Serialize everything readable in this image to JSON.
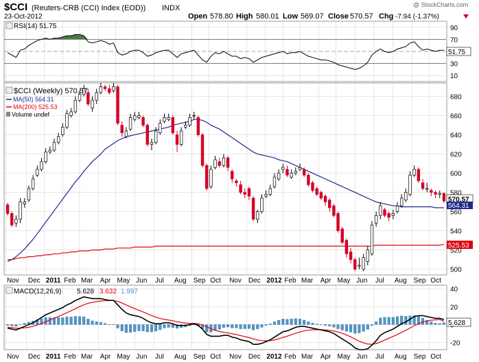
{
  "header": {
    "symbol": "$CCI",
    "title": "(Reuters-CRB (CCI) Index (EOD))",
    "exchange": "INDX",
    "date": "23-Oct-2012",
    "watermark": "@ StockCharts.com",
    "open_label": "Open",
    "open": "578.80",
    "high_label": "High",
    "high": "580.01",
    "low_label": "Low",
    "low": "569.07",
    "close_label": "Close",
    "close": "570.57",
    "chg_label": "Chg",
    "chg": "-7.94 (-1.37%)"
  },
  "rsi": {
    "label": "RSI(14) 51.75",
    "last_tag": "51.75",
    "yticks": [
      "90",
      "70",
      "50",
      "30",
      "10"
    ]
  },
  "price": {
    "legend_main": "$CCI (Weekly) 570.57",
    "legend_ma50": "MA(50) 564.31",
    "legend_ma200": "MA(200) 525.53",
    "legend_vol": "Volume undef",
    "tag_close": "570.57",
    "tag_ma50": "564.31",
    "tag_ma200": "525.53",
    "yticks": [
      "680",
      "660",
      "640",
      "620",
      "600",
      "580",
      "560",
      "540",
      "520",
      "500"
    ]
  },
  "macd": {
    "label_main": "MACD(12,26,9)",
    "val_macd": "5.628",
    "val_signal": "3.632",
    "val_hist": "1.997",
    "last_tag": "5.628",
    "yticks": [
      "40",
      "20",
      "0",
      "-20"
    ]
  },
  "xaxis": [
    "Nov",
    "Dec",
    "2011",
    "Feb",
    "Mar",
    "Apr",
    "May",
    "Jun",
    "Jul",
    "Aug",
    "Sep",
    "Oct",
    "Nov",
    "Dec",
    "2012",
    "Feb",
    "Mar",
    "Apr",
    "May",
    "Jun",
    "Jul",
    "Aug",
    "Sep",
    "Oct"
  ],
  "colors": {
    "up": "#ffffff",
    "down": "#d40027",
    "ma50": "#1c2a8c",
    "ma200": "#e0000f",
    "rsi_fill": "#4e7a4a",
    "hist": "#4f97c9",
    "grid": "#cccccc"
  },
  "chart_data": {
    "type": "candlestick",
    "title": "Reuters-CRB (CCI) Index (EOD)",
    "x": [
      "2010-11-01",
      "2010-11-08",
      "2010-11-15",
      "2010-11-22",
      "2010-11-29",
      "2010-12-06",
      "2010-12-13",
      "2010-12-20",
      "2010-12-27",
      "2011-01-03",
      "2011-01-10",
      "2011-01-17",
      "2011-01-24",
      "2011-01-31",
      "2011-02-07",
      "2011-02-14",
      "2011-02-21",
      "2011-02-28",
      "2011-03-07",
      "2011-03-14",
      "2011-03-21",
      "2011-03-28",
      "2011-04-04",
      "2011-04-11",
      "2011-04-18",
      "2011-04-25",
      "2011-05-02",
      "2011-05-09",
      "2011-05-16",
      "2011-05-23",
      "2011-05-30",
      "2011-06-06",
      "2011-06-13",
      "2011-06-20",
      "2011-06-27",
      "2011-07-04",
      "2011-07-11",
      "2011-07-18",
      "2011-07-25",
      "2011-08-01",
      "2011-08-08",
      "2011-08-15",
      "2011-08-22",
      "2011-08-29",
      "2011-09-05",
      "2011-09-12",
      "2011-09-19",
      "2011-09-26",
      "2011-10-03",
      "2011-10-10",
      "2011-10-17",
      "2011-10-24",
      "2011-10-31",
      "2011-11-07",
      "2011-11-14",
      "2011-11-21",
      "2011-11-28",
      "2011-12-05",
      "2011-12-12",
      "2011-12-19",
      "2011-12-26",
      "2012-01-02",
      "2012-01-09",
      "2012-01-16",
      "2012-01-23",
      "2012-01-30",
      "2012-02-06",
      "2012-02-13",
      "2012-02-20",
      "2012-02-27",
      "2012-03-05",
      "2012-03-12",
      "2012-03-19",
      "2012-03-26",
      "2012-04-02",
      "2012-04-09",
      "2012-04-16",
      "2012-04-23",
      "2012-04-30",
      "2012-05-07",
      "2012-05-14",
      "2012-05-21",
      "2012-05-28",
      "2012-06-04",
      "2012-06-11",
      "2012-06-18",
      "2012-06-25",
      "2012-07-02",
      "2012-07-09",
      "2012-07-16",
      "2012-07-23",
      "2012-07-30",
      "2012-08-06",
      "2012-08-13",
      "2012-08-20",
      "2012-08-27",
      "2012-09-03",
      "2012-09-10",
      "2012-09-17",
      "2012-09-24",
      "2012-10-01",
      "2012-10-08",
      "2012-10-15",
      "2012-10-22"
    ],
    "open": [
      567,
      558,
      548,
      552,
      568,
      572,
      584,
      598,
      604,
      612,
      622,
      624,
      632,
      640,
      648,
      660,
      664,
      676,
      682,
      684,
      668,
      676,
      684,
      690,
      688,
      686,
      690,
      650,
      638,
      646,
      656,
      658,
      658,
      650,
      630,
      632,
      642,
      654,
      656,
      658,
      640,
      630,
      648,
      650,
      660,
      658,
      640,
      608,
      586,
      606,
      612,
      608,
      616,
      602,
      592,
      588,
      580,
      584,
      574,
      552,
      560,
      576,
      578,
      586,
      594,
      604,
      604,
      596,
      600,
      604,
      604,
      598,
      590,
      584,
      580,
      576,
      572,
      566,
      558,
      542,
      530,
      518,
      510,
      504,
      500,
      508,
      516,
      548,
      556,
      562,
      558,
      556,
      560,
      566,
      572,
      578,
      598,
      604,
      590,
      584,
      582,
      580,
      578,
      579
    ],
    "close": [
      558,
      546,
      552,
      570,
      570,
      584,
      594,
      604,
      612,
      622,
      624,
      632,
      638,
      648,
      662,
      664,
      676,
      682,
      688,
      672,
      676,
      684,
      690,
      688,
      684,
      690,
      652,
      642,
      644,
      658,
      660,
      660,
      650,
      630,
      632,
      644,
      652,
      658,
      658,
      642,
      630,
      644,
      650,
      658,
      660,
      640,
      608,
      584,
      604,
      614,
      608,
      616,
      606,
      594,
      590,
      580,
      578,
      576,
      552,
      560,
      574,
      578,
      584,
      596,
      600,
      606,
      598,
      600,
      602,
      606,
      598,
      588,
      582,
      578,
      574,
      570,
      564,
      556,
      540,
      528,
      516,
      510,
      500,
      504,
      512,
      520,
      546,
      556,
      566,
      556,
      554,
      558,
      566,
      574,
      580,
      598,
      604,
      592,
      584,
      584,
      580,
      578,
      579,
      571
    ],
    "high": [
      569,
      560,
      556,
      574,
      574,
      587,
      598,
      608,
      616,
      626,
      628,
      636,
      642,
      652,
      666,
      668,
      680,
      686,
      692,
      688,
      680,
      688,
      694,
      692,
      692,
      694,
      692,
      654,
      648,
      662,
      664,
      664,
      660,
      652,
      636,
      648,
      656,
      662,
      662,
      660,
      644,
      648,
      654,
      662,
      664,
      660,
      642,
      610,
      608,
      618,
      616,
      620,
      618,
      604,
      594,
      592,
      584,
      586,
      576,
      562,
      578,
      582,
      588,
      600,
      604,
      610,
      608,
      604,
      606,
      610,
      606,
      600,
      592,
      586,
      582,
      578,
      574,
      568,
      560,
      544,
      532,
      522,
      512,
      512,
      516,
      524,
      550,
      560,
      570,
      564,
      560,
      562,
      570,
      578,
      584,
      602,
      608,
      606,
      594,
      590,
      584,
      582,
      582,
      580
    ],
    "low": [
      556,
      544,
      544,
      548,
      564,
      570,
      582,
      596,
      602,
      610,
      620,
      622,
      630,
      638,
      646,
      658,
      662,
      674,
      680,
      670,
      664,
      672,
      682,
      686,
      682,
      684,
      650,
      638,
      636,
      644,
      654,
      656,
      648,
      628,
      624,
      630,
      640,
      652,
      654,
      640,
      622,
      628,
      646,
      648,
      656,
      638,
      606,
      582,
      584,
      604,
      606,
      606,
      602,
      590,
      586,
      578,
      574,
      572,
      550,
      548,
      558,
      574,
      576,
      584,
      592,
      600,
      596,
      594,
      598,
      602,
      596,
      586,
      580,
      576,
      572,
      566,
      560,
      554,
      538,
      526,
      512,
      506,
      498,
      500,
      498,
      504,
      514,
      544,
      552,
      554,
      550,
      552,
      558,
      564,
      570,
      576,
      596,
      590,
      582,
      580,
      576,
      574,
      574,
      569
    ],
    "ma50": [
      508,
      510,
      513,
      517,
      521,
      526,
      531,
      537,
      543,
      549,
      555,
      561,
      567,
      573,
      579,
      585,
      591,
      596,
      602,
      607,
      612,
      616,
      620,
      625,
      628,
      631,
      634,
      636,
      638,
      639,
      640,
      641,
      642,
      643,
      644,
      645,
      646,
      647,
      648,
      650,
      651,
      652,
      653,
      654,
      656,
      656,
      655,
      653,
      650,
      648,
      646,
      643,
      640,
      637,
      634,
      631,
      628,
      625,
      622,
      620,
      619,
      618,
      617,
      616,
      614,
      613,
      612,
      610,
      608,
      606,
      604,
      602,
      600,
      598,
      596,
      594,
      592,
      590,
      588,
      586,
      584,
      582,
      580,
      578,
      576,
      574,
      572,
      570,
      569,
      568,
      567,
      566,
      566,
      565,
      565,
      565,
      565,
      565,
      565,
      565,
      565,
      564,
      564,
      564
    ],
    "ma200": [
      510,
      510,
      511,
      512,
      512,
      513,
      513,
      514,
      514,
      515,
      515,
      516,
      516,
      517,
      517,
      518,
      518,
      519,
      519,
      519,
      520,
      520,
      520,
      521,
      521,
      521,
      522,
      522,
      522,
      522,
      523,
      523,
      523,
      523,
      523,
      524,
      524,
      524,
      524,
      524,
      524,
      524,
      524,
      524,
      524,
      524,
      524,
      524,
      524,
      524,
      524,
      524,
      524,
      524,
      524,
      524,
      524,
      524,
      524,
      524,
      524,
      524,
      524,
      524,
      524,
      524,
      524,
      524,
      524,
      524,
      524,
      524,
      524,
      524,
      524,
      524,
      524,
      524,
      524,
      524,
      524,
      524,
      524,
      524,
      524,
      524,
      524,
      525,
      525,
      525,
      525,
      525,
      525,
      525,
      525,
      525,
      525,
      525,
      525,
      525,
      525,
      525,
      525,
      526
    ],
    "rsi": [
      48,
      44,
      40,
      52,
      54,
      60,
      64,
      68,
      70,
      72,
      70,
      72,
      72,
      74,
      76,
      76,
      78,
      78,
      76,
      66,
      64,
      66,
      68,
      66,
      62,
      64,
      48,
      44,
      46,
      50,
      52,
      52,
      48,
      42,
      44,
      48,
      50,
      52,
      52,
      46,
      40,
      46,
      48,
      50,
      52,
      44,
      36,
      32,
      42,
      48,
      46,
      50,
      46,
      42,
      42,
      38,
      40,
      38,
      32,
      36,
      40,
      42,
      44,
      46,
      48,
      50,
      46,
      48,
      48,
      50,
      46,
      42,
      40,
      38,
      36,
      36,
      34,
      32,
      28,
      26,
      24,
      22,
      20,
      22,
      26,
      32,
      44,
      50,
      54,
      50,
      48,
      50,
      54,
      56,
      58,
      64,
      66,
      58,
      52,
      54,
      52,
      50,
      52,
      52
    ],
    "macd": [
      -4,
      -5,
      -6,
      -4,
      -2,
      0,
      2,
      5,
      8,
      11,
      13,
      15,
      17,
      19,
      22,
      24,
      27,
      29,
      31,
      30,
      29,
      29,
      29,
      28,
      27,
      27,
      22,
      17,
      13,
      11,
      10,
      9,
      7,
      4,
      2,
      1,
      1,
      2,
      2,
      1,
      -1,
      -1,
      -1,
      0,
      1,
      -1,
      -5,
      -11,
      -13,
      -13,
      -13,
      -12,
      -12,
      -14,
      -15,
      -17,
      -18,
      -19,
      -22,
      -22,
      -21,
      -19,
      -17,
      -14,
      -11,
      -8,
      -7,
      -5,
      -3,
      -2,
      -2,
      -3,
      -4,
      -5,
      -6,
      -7,
      -8,
      -10,
      -13,
      -16,
      -19,
      -22,
      -26,
      -28,
      -28,
      -27,
      -23,
      -18,
      -12,
      -9,
      -7,
      -5,
      -2,
      1,
      3,
      6,
      9,
      10,
      10,
      9,
      8,
      7,
      7,
      5.628
    ],
    "signal": [
      -3,
      -3.4,
      -4,
      -4,
      -3.6,
      -2.9,
      -1.9,
      -0.5,
      1.2,
      3.2,
      5.2,
      7.2,
      9.1,
      11.1,
      13.3,
      15.5,
      17.8,
      20,
      22.2,
      23.8,
      24.8,
      25.7,
      26.4,
      26.7,
      26.8,
      26.8,
      25.9,
      24.1,
      21.9,
      19.7,
      17.8,
      16,
      14.2,
      12.1,
      10.1,
      8.3,
      6.8,
      5.9,
      5.1,
      4.3,
      3.2,
      2.4,
      1.7,
      1.3,
      1.3,
      0.8,
      -0.4,
      -2.5,
      -4.6,
      -6.3,
      -7.7,
      -8.6,
      -9.3,
      -10.2,
      -11.2,
      -12.3,
      -13.4,
      -14.5,
      -16,
      -17.2,
      -17.9,
      -18.1,
      -17.9,
      -17.1,
      -15.9,
      -14.3,
      -12.9,
      -11.3,
      -9.7,
      -8.2,
      -7,
      -6.2,
      -5.8,
      -5.6,
      -5.7,
      -6,
      -6.4,
      -7.1,
      -8.3,
      -9.8,
      -11.6,
      -13.7,
      -16.2,
      -18.6,
      -20.4,
      -21.7,
      -22,
      -21.2,
      -19.4,
      -17.3,
      -15.2,
      -13.2,
      -11,
      -8.6,
      -6.3,
      -3.8,
      -1.2,
      1,
      2.8,
      4.1,
      4.9,
      5.3,
      5.6,
      3.632
    ]
  }
}
